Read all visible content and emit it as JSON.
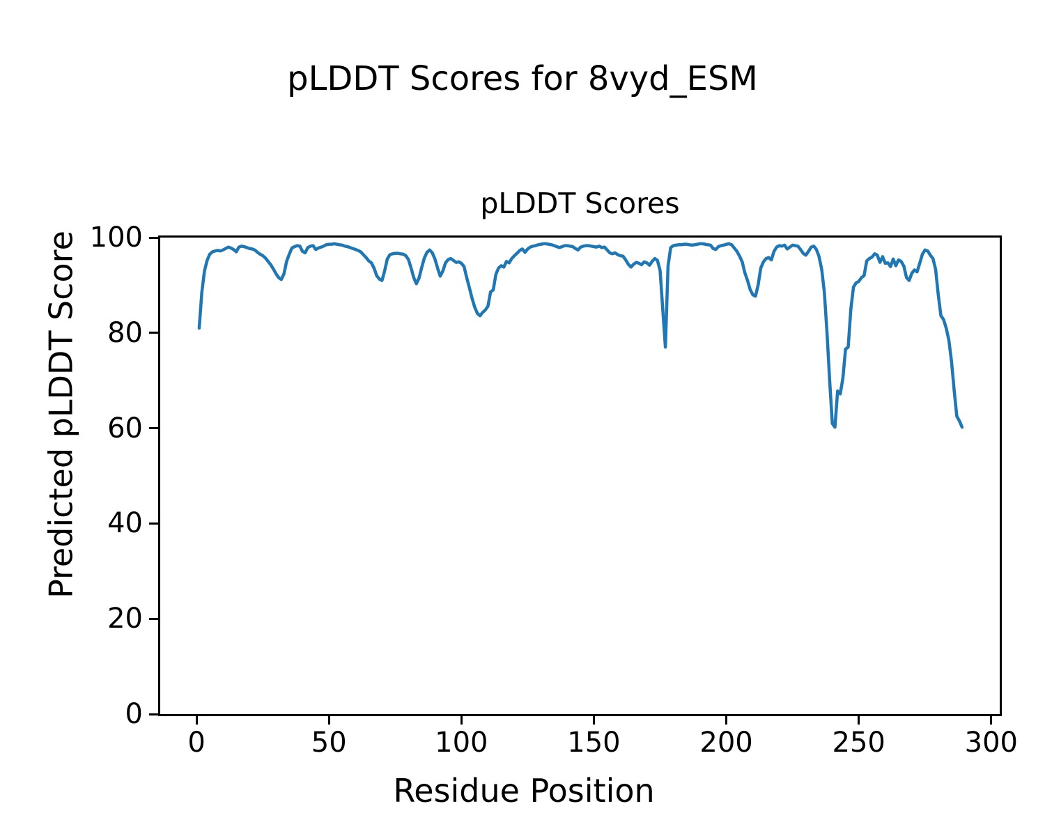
{
  "figure": {
    "suptitle": "pLDDT Scores for 8vyd_ESM",
    "background_color": "#ffffff",
    "text_color": "#000000"
  },
  "chart_data": {
    "type": "line",
    "title": "pLDDT Scores",
    "xlabel": "Residue Position",
    "ylabel": "Predicted pLDDT Score",
    "xlim": [
      -13.7,
      303.2
    ],
    "ylim": [
      0,
      100
    ],
    "x_ticks": [
      0,
      50,
      100,
      150,
      200,
      250,
      300
    ],
    "y_ticks": [
      0,
      20,
      40,
      60,
      80,
      100
    ],
    "grid": false,
    "legend": "none",
    "line_color": "#1f77b4",
    "line_width": 4.5,
    "series": [
      {
        "name": "pLDDT",
        "x_start": 1,
        "x_step": 1,
        "n_points": 289,
        "y": [
          81.0,
          88.5,
          93.0,
          95.2,
          96.5,
          97.0,
          97.2,
          97.3,
          97.2,
          97.4,
          97.7,
          98.0,
          97.8,
          97.5,
          97.0,
          98.0,
          98.2,
          98.1,
          97.9,
          97.7,
          97.6,
          97.4,
          96.9,
          96.5,
          96.2,
          95.7,
          95.0,
          94.3,
          93.4,
          92.4,
          91.6,
          91.2,
          92.4,
          95.0,
          96.5,
          97.8,
          98.1,
          98.3,
          98.2,
          97.1,
          96.8,
          97.9,
          98.2,
          98.3,
          97.5,
          97.8,
          98.0,
          98.2,
          98.5,
          98.6,
          98.6,
          98.7,
          98.6,
          98.5,
          98.4,
          98.2,
          98.1,
          97.9,
          97.7,
          97.5,
          97.3,
          97.0,
          96.4,
          95.8,
          95.1,
          94.7,
          93.6,
          92.0,
          91.3,
          91.0,
          93.0,
          95.5,
          96.4,
          96.6,
          96.7,
          96.7,
          96.6,
          96.5,
          96.2,
          95.4,
          93.6,
          91.6,
          90.3,
          91.5,
          93.7,
          95.7,
          96.9,
          97.4,
          96.8,
          95.5,
          93.6,
          91.9,
          93.0,
          94.7,
          95.4,
          95.6,
          95.2,
          94.8,
          94.9,
          94.6,
          93.9,
          91.6,
          89.5,
          87.3,
          85.4,
          84.1,
          83.6,
          84.3,
          84.8,
          85.6,
          88.6,
          89.0,
          92.3,
          93.6,
          94.1,
          93.8,
          95.0,
          94.7,
          95.6,
          96.2,
          96.7,
          97.3,
          97.6,
          96.9,
          97.6,
          98.0,
          98.2,
          98.3,
          98.5,
          98.6,
          98.7,
          98.7,
          98.6,
          98.5,
          98.3,
          98.1,
          97.9,
          98.1,
          98.3,
          98.3,
          98.2,
          98.1,
          97.7,
          97.4,
          98.0,
          98.2,
          98.3,
          98.3,
          98.2,
          98.1,
          98.0,
          98.2,
          97.9,
          98.0,
          97.4,
          96.8,
          96.6,
          96.8,
          96.4,
          96.2,
          96.1,
          95.3,
          94.4,
          93.8,
          94.4,
          94.8,
          94.6,
          94.3,
          94.9,
          94.7,
          94.2,
          95.0,
          95.6,
          95.2,
          93.1,
          85.0,
          77.0,
          94.0,
          97.9,
          98.3,
          98.4,
          98.5,
          98.5,
          98.6,
          98.6,
          98.5,
          98.4,
          98.5,
          98.6,
          98.7,
          98.7,
          98.6,
          98.5,
          98.4,
          97.7,
          97.5,
          98.1,
          98.3,
          98.4,
          98.6,
          98.7,
          98.5,
          97.8,
          97.1,
          96.1,
          94.9,
          92.6,
          91.0,
          89.1,
          88.0,
          87.7,
          90.0,
          93.6,
          94.9,
          95.6,
          95.8,
          95.3,
          97.1,
          98.0,
          98.3,
          98.2,
          98.4,
          97.6,
          98.0,
          98.4,
          98.3,
          98.2,
          97.5,
          96.7,
          96.3,
          97.1,
          98.0,
          98.2,
          97.5,
          96.0,
          93.3,
          88.5,
          80.0,
          70.0,
          61.0,
          60.2,
          67.8,
          67.2,
          70.5,
          76.6,
          77.0,
          85.0,
          89.6,
          90.5,
          90.8,
          91.6,
          92.0,
          95.1,
          95.6,
          95.9,
          96.6,
          96.3,
          94.8,
          96.0,
          94.6,
          94.7,
          93.9,
          95.5,
          94.1,
          95.3,
          95.0,
          94.0,
          91.6,
          91.0,
          92.5,
          93.2,
          92.8,
          94.6,
          96.5,
          97.4,
          97.2,
          96.3,
          95.6,
          93.3,
          88.0,
          83.6,
          82.8,
          81.0,
          78.5,
          74.0,
          68.0,
          62.5,
          61.5,
          60.2
        ]
      }
    ]
  }
}
